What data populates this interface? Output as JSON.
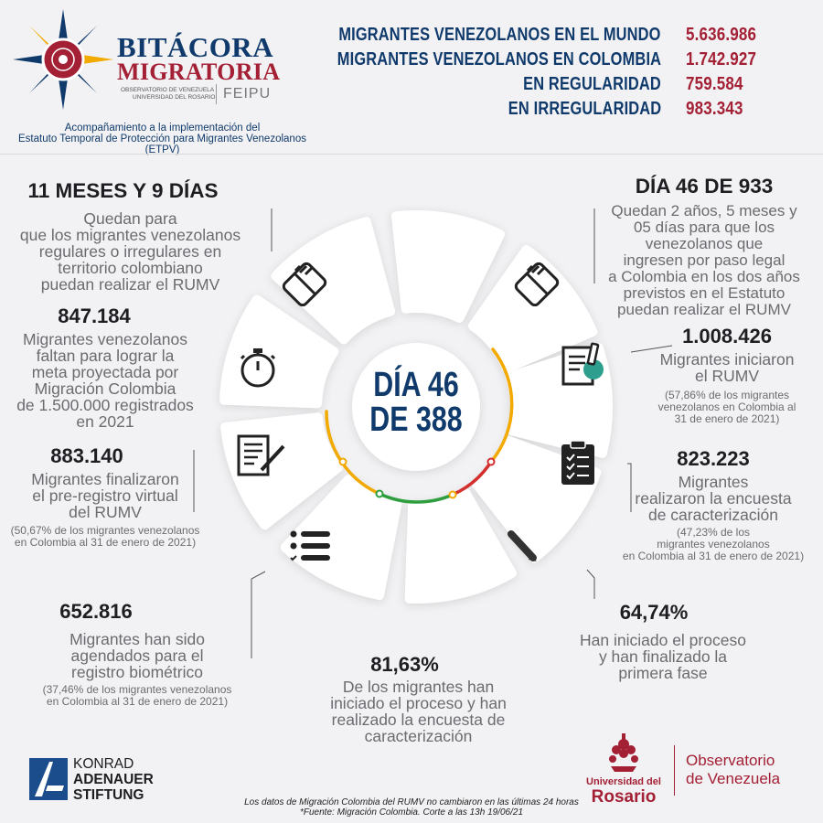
{
  "header": {
    "brand_line1": "BITÁCORA",
    "brand_line2": "MIGRATORIA",
    "brand_sub1": "OBSERVATORIO DE VENEZUELA",
    "brand_sub2": "UNIVERSIDAD DEL ROSARIO",
    "brand_tag": "FEIPU",
    "subtitle_line1": "Acompañamiento a la implementación del",
    "subtitle_line2": "Estatuto Temporal de Protección para Migrantes Venezolanos (ETPV)",
    "stats": [
      {
        "label": "MIGRANTES VENEZOLANOS EN EL MUNDO",
        "value": "5.636.986"
      },
      {
        "label": "MIGRANTES VENEZOLANOS EN COLOMBIA",
        "value": "1.742.927"
      },
      {
        "label": "EN REGULARIDAD",
        "value": "759.584"
      },
      {
        "label": "EN IRREGULARIDAD",
        "value": "983.343"
      }
    ]
  },
  "center": {
    "line1": "DÍA 46",
    "line2": "DE 388"
  },
  "blocks": {
    "meses": {
      "title": "11 MESES Y 9 DÍAS",
      "desc": [
        "Quedan para",
        "que los migrantes venezolanos",
        "regulares o irregulares en",
        "territorio colombiano",
        "puedan realizar el RUMV"
      ]
    },
    "dia933": {
      "title": "DÍA 46 DE 933",
      "desc": [
        "Quedan 2 años, 5 meses y",
        "05 días para que los",
        "venezolanos que",
        "ingresen por paso legal",
        "a Colombia en los dos años",
        "previstos en el Estatuto",
        "puedan  realizar el RUMV"
      ]
    },
    "faltan": {
      "title": "847.184",
      "desc": [
        "Migrantes venezolanos",
        "faltan para lograr la",
        "meta proyectada por",
        "Migración Colombia",
        "de 1.500.000 registrados",
        "en 2021"
      ]
    },
    "iniciaron": {
      "title": "1.008.426",
      "desc": [
        "Migrantes iniciaron",
        "el RUMV"
      ],
      "note": [
        "(57,86% de los migrantes",
        "venezolanos en Colombia al",
        "31 de enero de 2021)"
      ]
    },
    "prereg": {
      "title": "883.140",
      "desc": [
        "Migrantes finalizaron",
        "el pre-registro virtual",
        "del RUMV"
      ],
      "note": [
        "(50,67% de los migrantes venezolanos",
        "en Colombia al 31 de enero de 2021)"
      ]
    },
    "encuesta": {
      "title": "823.223",
      "desc": [
        "Migrantes",
        "realizaron la encuesta",
        "de caracterización"
      ],
      "note": [
        "(47,23% de los",
        "migrantes venezolanos",
        "en Colombia al 31 de enero de 2021)"
      ]
    },
    "agendados": {
      "title": "652.816",
      "desc": [
        "Migrantes han sido",
        "agendados para el",
        "registro biométrico"
      ],
      "note": [
        "(37,46% de los migrantes venezolanos",
        "en Colombia al 31 de enero de 2021)"
      ]
    },
    "pct6474": {
      "title": "64,74%",
      "desc": [
        "Han iniciado el proceso",
        "y han finalizado la",
        "primera fase"
      ]
    },
    "pct8163": {
      "title": "81,63%",
      "desc": [
        "De los migrantes han",
        "iniciado el proceso y han",
        "realizado la encuesta de",
        "caracterización"
      ]
    }
  },
  "footer": {
    "kas1": "KONRAD",
    "kas2": "ADENAUER",
    "kas3": "STIFTUNG",
    "note1": "Los datos de Migración Colombia del RUMV no cambiaron en las últimas 24 horas",
    "note2": "*Fuente: Migración Colombia. Corte a las 13h 19/06/21",
    "ur1": "Universidad del",
    "ur2": "Rosario",
    "obs1": "Observatorio",
    "obs2": "de Venezuela"
  },
  "colors": {
    "navy": "#0f3a6b",
    "wine": "#a32035",
    "green": "#2e9e3e",
    "yellow": "#f2a900",
    "red": "#d32f2f"
  }
}
